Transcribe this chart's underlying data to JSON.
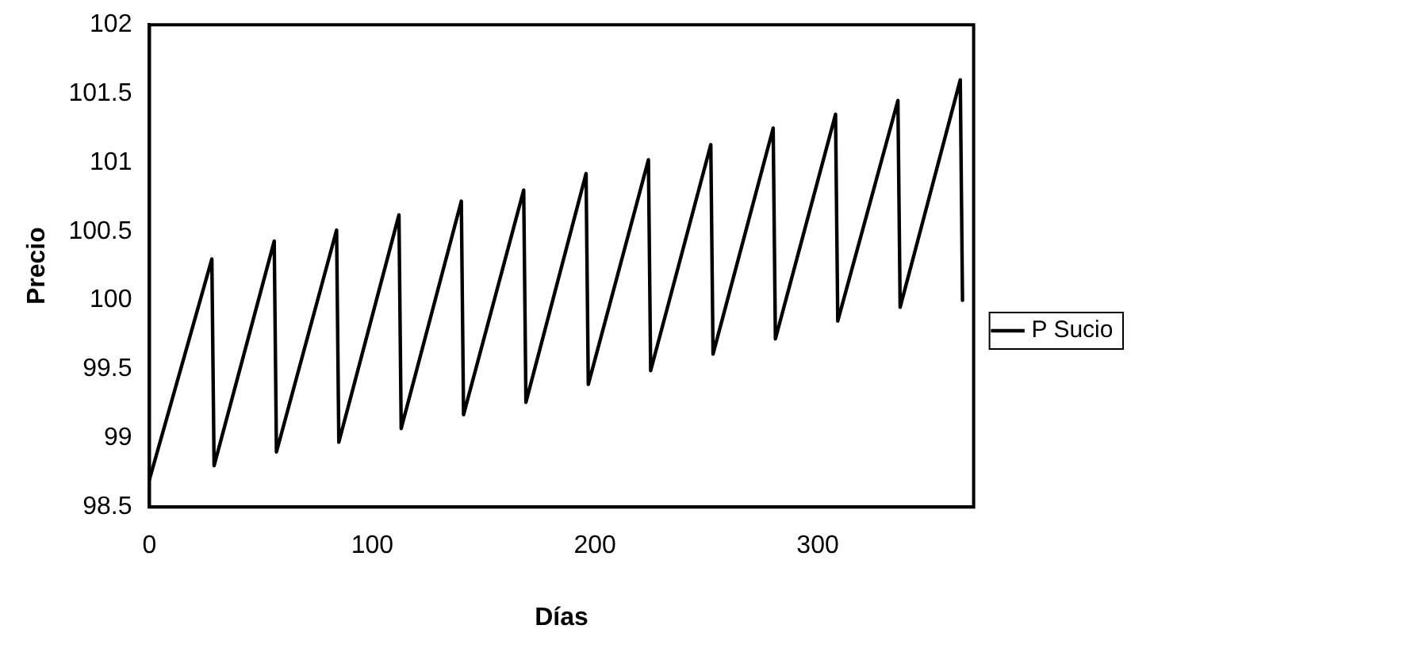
{
  "chart_data": {
    "type": "line",
    "xlabel": "Días",
    "ylabel": "Precio",
    "x": [
      0,
      28,
      29,
      56,
      57,
      84,
      85,
      112,
      113,
      140,
      141,
      168,
      169,
      196,
      197,
      224,
      225,
      252,
      253,
      280,
      281,
      308,
      309,
      336,
      337,
      364,
      365
    ],
    "series": [
      {
        "name": "P Sucio",
        "color": "#000000",
        "values": [
          98.7,
          100.3,
          98.8,
          100.43,
          98.9,
          100.51,
          98.97,
          100.62,
          99.07,
          100.72,
          99.17,
          100.8,
          99.26,
          100.92,
          99.39,
          101.02,
          99.49,
          101.13,
          99.61,
          101.25,
          99.72,
          101.35,
          99.85,
          101.45,
          99.95,
          101.6,
          100.0
        ]
      }
    ],
    "xlim": [
      0,
      370
    ],
    "xticks": [
      0,
      100,
      200,
      300
    ],
    "ylim": [
      98.5,
      102
    ],
    "yticks": [
      98.5,
      99,
      99.5,
      100,
      100.5,
      101,
      101.5,
      102
    ],
    "grid": false,
    "legend": "right",
    "marker": "none",
    "line_style": "solid"
  }
}
